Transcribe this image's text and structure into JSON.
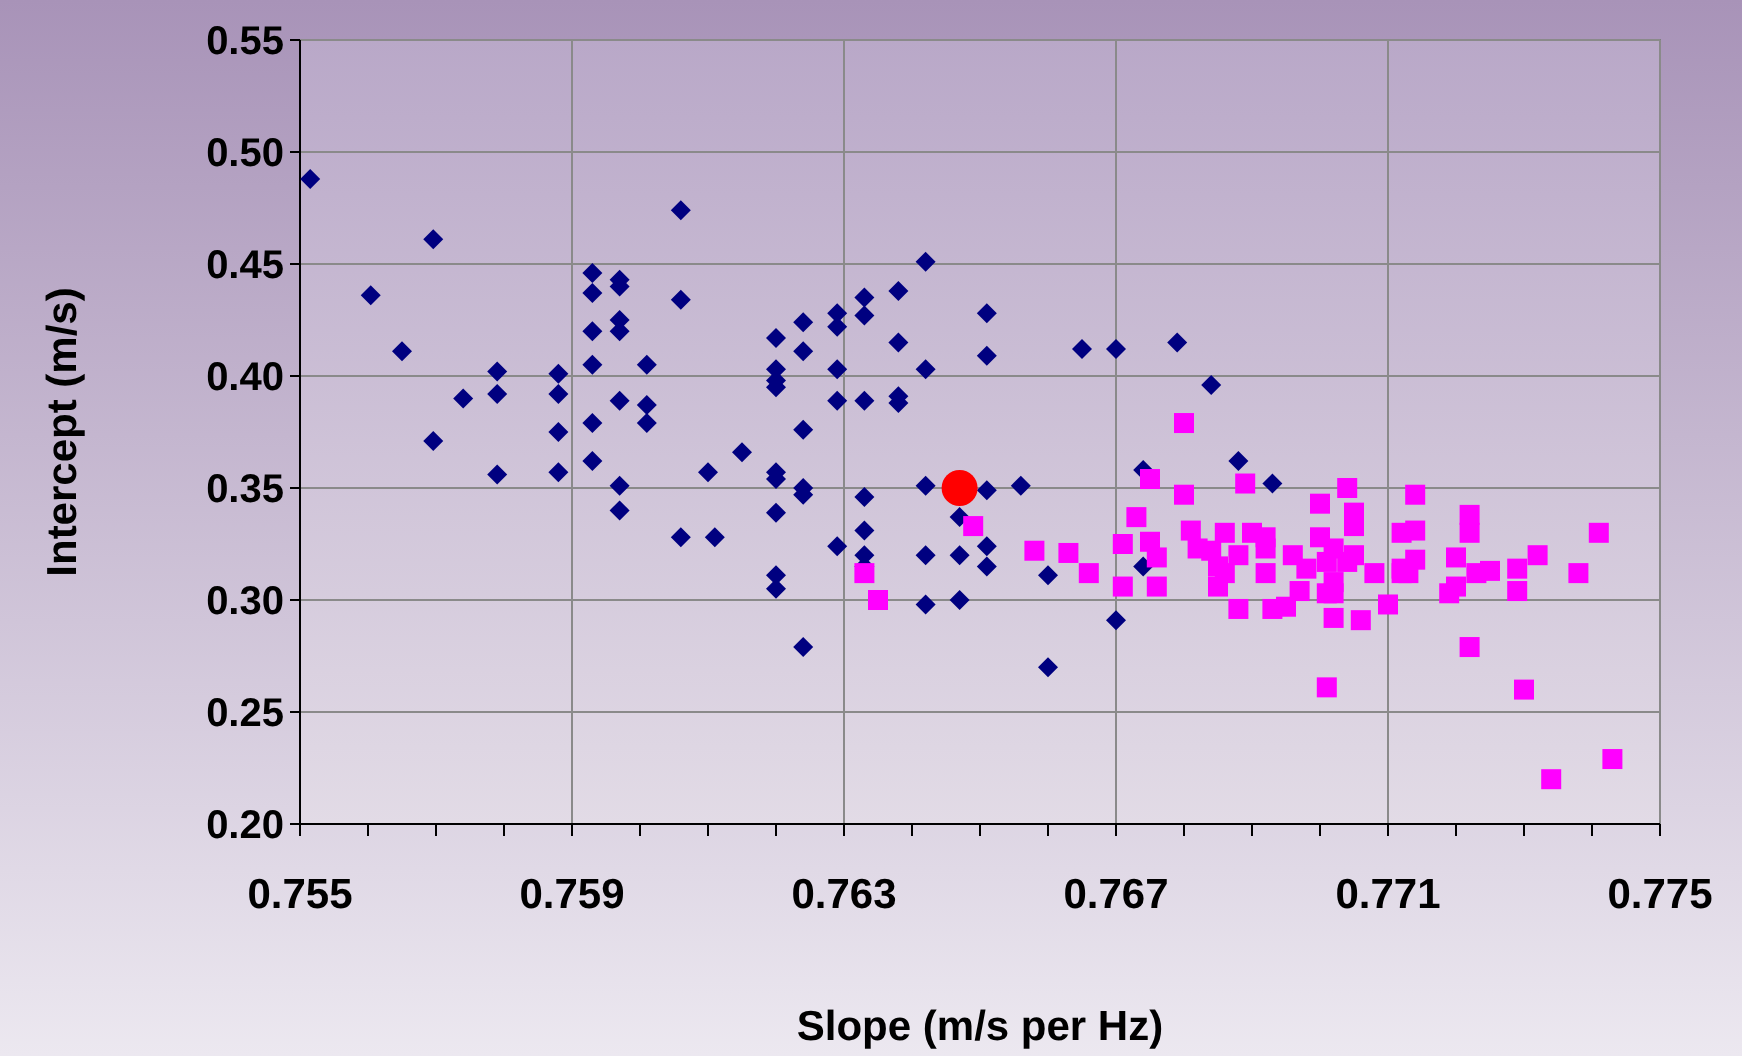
{
  "chart_data": {
    "type": "scatter",
    "xlabel": "Slope (m/s per Hz)",
    "ylabel": "Intercept (m/s)",
    "xlim": [
      0.755,
      0.775
    ],
    "xticks": [
      0.755,
      0.759,
      0.763,
      0.767,
      0.771,
      0.775
    ],
    "ylim": [
      0.2,
      0.55
    ],
    "yticks": [
      {
        "value": 0.2,
        "label": "0.20"
      },
      {
        "value": 0.25,
        "label": "0.25"
      },
      {
        "value": 0.3,
        "label": "0.30"
      },
      {
        "value": 0.35,
        "label": "0.35"
      },
      {
        "value": 0.4,
        "label": "0.40"
      },
      {
        "value": 0.45,
        "label": "0.45"
      },
      {
        "value": 0.5,
        "label": "0.50"
      },
      {
        "value": 0.55,
        "label": "0.55"
      }
    ],
    "grid": true,
    "series": [
      {
        "color": "#000080",
        "marker": "diamond",
        "x": [
          0.75515,
          0.75604,
          0.7565,
          0.75696,
          0.75696,
          0.7574,
          0.7579,
          0.7579,
          0.7579,
          0.7588,
          0.7588,
          0.7588,
          0.7588,
          0.7593,
          0.7593,
          0.7593,
          0.7593,
          0.7593,
          0.7593,
          0.7597,
          0.7597,
          0.7597,
          0.7597,
          0.7597,
          0.7597,
          0.7597,
          0.7601,
          0.7601,
          0.7601,
          0.7606,
          0.7606,
          0.7606,
          0.7611,
          0.761,
          0.7615,
          0.762,
          0.762,
          0.762,
          0.762,
          0.762,
          0.762,
          0.762,
          0.762,
          0.762,
          0.7624,
          0.7624,
          0.7624,
          0.7624,
          0.7624,
          0.7624,
          0.7629,
          0.7629,
          0.7629,
          0.7629,
          0.7629,
          0.7633,
          0.7633,
          0.7633,
          0.7633,
          0.7633,
          0.7633,
          0.7633,
          0.7638,
          0.7638,
          0.7638,
          0.7638,
          0.7642,
          0.7642,
          0.7642,
          0.7642,
          0.7642,
          0.7647,
          0.7647,
          0.7647,
          0.7651,
          0.7651,
          0.7651,
          0.7651,
          0.7651,
          0.7656,
          0.766,
          0.766,
          0.7665,
          0.767,
          0.767,
          0.7674,
          0.7674,
          0.7679,
          0.7684,
          0.7688,
          0.7693
        ],
        "values": [
          0.488,
          0.436,
          0.411,
          0.461,
          0.371,
          0.39,
          0.402,
          0.392,
          0.356,
          0.401,
          0.392,
          0.375,
          0.357,
          0.446,
          0.437,
          0.42,
          0.405,
          0.379,
          0.362,
          0.443,
          0.44,
          0.425,
          0.42,
          0.389,
          0.351,
          0.34,
          0.405,
          0.387,
          0.379,
          0.474,
          0.434,
          0.328,
          0.328,
          0.357,
          0.366,
          0.417,
          0.403,
          0.398,
          0.395,
          0.357,
          0.354,
          0.339,
          0.311,
          0.305,
          0.424,
          0.411,
          0.376,
          0.35,
          0.347,
          0.279,
          0.428,
          0.422,
          0.403,
          0.389,
          0.324,
          0.435,
          0.427,
          0.389,
          0.346,
          0.331,
          0.32,
          0.315,
          0.438,
          0.415,
          0.391,
          0.388,
          0.451,
          0.403,
          0.351,
          0.32,
          0.298,
          0.337,
          0.32,
          0.3,
          0.428,
          0.409,
          0.349,
          0.324,
          0.315,
          0.351,
          0.27,
          0.311,
          0.412,
          0.412,
          0.291,
          0.358,
          0.315,
          0.415,
          0.396,
          0.362,
          0.352
        ]
      },
      {
        "color": "#ff00ff",
        "marker": "square",
        "x": [
          0.7633,
          0.7635,
          0.7649,
          0.7658,
          0.7663,
          0.7666,
          0.7671,
          0.7671,
          0.7673,
          0.7675,
          0.7675,
          0.7676,
          0.7676,
          0.768,
          0.768,
          0.7681,
          0.7682,
          0.7684,
          0.7686,
          0.7685,
          0.7686,
          0.7685,
          0.7688,
          0.7688,
          0.7689,
          0.769,
          0.7692,
          0.7692,
          0.7692,
          0.7693,
          0.7695,
          0.7696,
          0.7698,
          0.7697,
          0.77,
          0.7704,
          0.77,
          0.7702,
          0.7705,
          0.7701,
          0.7704,
          0.7705,
          0.7705,
          0.7702,
          0.7701,
          0.7702,
          0.7702,
          0.7706,
          0.7708,
          0.7701,
          0.771,
          0.7714,
          0.7712,
          0.7714,
          0.7714,
          0.7712,
          0.7712,
          0.7713,
          0.7722,
          0.7722,
          0.772,
          0.7719,
          0.772,
          0.7722,
          0.7723,
          0.7725,
          0.7729,
          0.7729,
          0.7732,
          0.773,
          0.7738,
          0.7741,
          0.7734,
          0.7743
        ],
        "values": [
          0.312,
          0.3,
          0.333,
          0.322,
          0.321,
          0.312,
          0.325,
          0.306,
          0.337,
          0.354,
          0.326,
          0.319,
          0.306,
          0.379,
          0.347,
          0.331,
          0.323,
          0.322,
          0.33,
          0.315,
          0.312,
          0.306,
          0.32,
          0.296,
          0.352,
          0.33,
          0.328,
          0.323,
          0.312,
          0.296,
          0.297,
          0.32,
          0.314,
          0.304,
          0.343,
          0.35,
          0.328,
          0.323,
          0.32,
          0.317,
          0.317,
          0.339,
          0.333,
          0.308,
          0.303,
          0.303,
          0.292,
          0.291,
          0.312,
          0.261,
          0.298,
          0.347,
          0.33,
          0.331,
          0.318,
          0.314,
          0.312,
          0.312,
          0.338,
          0.33,
          0.319,
          0.303,
          0.306,
          0.279,
          0.312,
          0.313,
          0.314,
          0.304,
          0.32,
          0.26,
          0.312,
          0.33,
          0.22,
          0.229
        ]
      },
      {
        "color": "#ff0000",
        "marker": "circle",
        "x": [
          0.7647
        ],
        "values": [
          0.35
        ]
      }
    ]
  }
}
